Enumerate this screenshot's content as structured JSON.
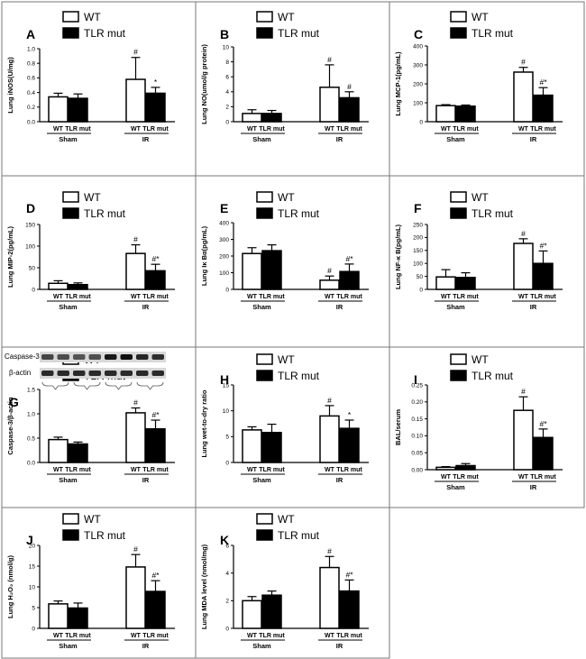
{
  "colors": {
    "wt": "#ffffff",
    "mut": "#000000",
    "border": "#777777"
  },
  "legend": {
    "wt": "WT",
    "mut": "TLR mut"
  },
  "groups": {
    "sham": "Sham",
    "ir": "IR"
  },
  "sub_labels": {
    "wt": "WT",
    "mut": "TLR mut"
  },
  "blot": {
    "caspase": "Caspase-3",
    "actin": "β-actin"
  },
  "chart_data": [
    {
      "letter": "A",
      "type": "bar",
      "ylabel": "Lung iNOS(U/mg)",
      "ylim": [
        0,
        1.0
      ],
      "yticks": [
        "0.0",
        "0.2",
        "0.4",
        "0.6",
        "0.8",
        "1.0"
      ],
      "series": [
        {
          "name": "WT",
          "values": [
            0.34,
            0.58
          ],
          "errors": [
            0.05,
            0.3
          ]
        },
        {
          "name": "TLR mut",
          "values": [
            0.32,
            0.39
          ],
          "errors": [
            0.06,
            0.08
          ]
        }
      ],
      "sig_wt_ir": "#",
      "sig_mut_ir": "*"
    },
    {
      "letter": "B",
      "type": "bar",
      "ylabel": "Lung NO(umol/g protein)",
      "ylim": [
        0,
        10
      ],
      "yticks": [
        "0",
        "2",
        "4",
        "6",
        "8",
        "10"
      ],
      "series": [
        {
          "name": "WT",
          "values": [
            1.1,
            4.6
          ],
          "errors": [
            0.5,
            3.0
          ]
        },
        {
          "name": "TLR mut",
          "values": [
            1.1,
            3.2
          ],
          "errors": [
            0.4,
            0.8
          ]
        }
      ],
      "sig_wt_ir": "#",
      "sig_mut_ir": "#"
    },
    {
      "letter": "C",
      "type": "bar",
      "ylabel": "Lung MCP-1(pg/mL)",
      "ylim": [
        0,
        400
      ],
      "yticks": [
        "0",
        "100",
        "200",
        "300",
        "400"
      ],
      "series": [
        {
          "name": "WT",
          "values": [
            85,
            262
          ],
          "errors": [
            5,
            25
          ]
        },
        {
          "name": "TLR mut",
          "values": [
            82,
            140
          ],
          "errors": [
            6,
            40
          ]
        }
      ],
      "sig_wt_ir": "#",
      "sig_mut_ir": "#*"
    },
    {
      "letter": "D",
      "type": "bar",
      "ylabel": "Lung MIP-2(pg/mL)",
      "ylim": [
        0,
        150
      ],
      "yticks": [
        "0",
        "50",
        "100",
        "150"
      ],
      "series": [
        {
          "name": "WT",
          "values": [
            14,
            83
          ],
          "errors": [
            6,
            20
          ]
        },
        {
          "name": "TLR mut",
          "values": [
            11,
            43
          ],
          "errors": [
            4,
            15
          ]
        }
      ],
      "sig_wt_ir": "#",
      "sig_mut_ir": "#*"
    },
    {
      "letter": "E",
      "type": "bar",
      "ylabel": "Lung Iκ Bα(pg/mL)",
      "ylim": [
        0,
        400
      ],
      "yticks": [
        "0",
        "100",
        "200",
        "300",
        "400"
      ],
      "series": [
        {
          "name": "WT",
          "values": [
            215,
            55
          ],
          "errors": [
            35,
            25
          ]
        },
        {
          "name": "TLR mut",
          "values": [
            232,
            107
          ],
          "errors": [
            35,
            45
          ]
        }
      ],
      "sig_wt_ir": "#",
      "sig_mut_ir": "#*"
    },
    {
      "letter": "F",
      "type": "bar",
      "ylabel": "Lung NF-κ B(pg/mL)",
      "ylim": [
        0,
        250
      ],
      "yticks": [
        "0",
        "50",
        "100",
        "150",
        "200",
        "250"
      ],
      "series": [
        {
          "name": "WT",
          "values": [
            48,
            177
          ],
          "errors": [
            28,
            18
          ]
        },
        {
          "name": "TLR mut",
          "values": [
            46,
            100
          ],
          "errors": [
            18,
            48
          ]
        }
      ],
      "sig_wt_ir": "#",
      "sig_mut_ir": "#*"
    },
    {
      "letter": "G",
      "type": "bar",
      "ylabel": "Caspase-3/β-actin",
      "ylim": [
        0,
        1.5
      ],
      "yticks": [
        "0.0",
        "0.5",
        "1.0",
        "1.5"
      ],
      "series": [
        {
          "name": "WT",
          "values": [
            0.47,
            1.02
          ],
          "errors": [
            0.05,
            0.1
          ]
        },
        {
          "name": "TLR mut",
          "values": [
            0.38,
            0.69
          ],
          "errors": [
            0.04,
            0.18
          ]
        }
      ],
      "sig_wt_ir": "#",
      "sig_mut_ir": "#*"
    },
    {
      "letter": "H",
      "type": "bar",
      "ylabel": "Lung wet-to-dry ratio",
      "ylim": [
        0,
        15
      ],
      "yticks": [
        "0",
        "5",
        "10",
        "15"
      ],
      "series": [
        {
          "name": "WT",
          "values": [
            6.3,
            9.0
          ],
          "errors": [
            0.6,
            2.0
          ]
        },
        {
          "name": "TLR mut",
          "values": [
            5.8,
            6.6
          ],
          "errors": [
            1.6,
            1.6
          ]
        }
      ],
      "sig_wt_ir": "#",
      "sig_mut_ir": "*"
    },
    {
      "letter": "I",
      "type": "bar",
      "ylabel": "BAL/serum",
      "ylim": [
        0,
        0.25
      ],
      "yticks": [
        "0.00",
        "0.05",
        "0.10",
        "0.15",
        "0.20",
        "0.25"
      ],
      "series": [
        {
          "name": "WT",
          "values": [
            0.007,
            0.175
          ],
          "errors": [
            0.002,
            0.04
          ]
        },
        {
          "name": "TLR mut",
          "values": [
            0.012,
            0.095
          ],
          "errors": [
            0.006,
            0.025
          ]
        }
      ],
      "sig_wt_ir": "#",
      "sig_mut_ir": "#*"
    },
    {
      "letter": "J",
      "type": "bar",
      "ylabel": "Lung H₂O₂ (nmol/g)",
      "ylim": [
        0,
        20
      ],
      "yticks": [
        "0",
        "5",
        "10",
        "15",
        "20"
      ],
      "series": [
        {
          "name": "WT",
          "values": [
            5.9,
            14.8
          ],
          "errors": [
            0.7,
            3.0
          ]
        },
        {
          "name": "TLR mut",
          "values": [
            4.9,
            8.9
          ],
          "errors": [
            1.2,
            2.6
          ]
        }
      ],
      "sig_wt_ir": "#",
      "sig_mut_ir": "#*"
    },
    {
      "letter": "K",
      "type": "bar",
      "ylabel": "Lung MDA level (nmol/mg)",
      "ylim": [
        0,
        6
      ],
      "yticks": [
        "0",
        "2",
        "4",
        "6"
      ],
      "series": [
        {
          "name": "WT",
          "values": [
            2.0,
            4.4
          ],
          "errors": [
            0.3,
            0.8
          ]
        },
        {
          "name": "TLR mut",
          "values": [
            2.4,
            2.7
          ],
          "errors": [
            0.3,
            0.8
          ]
        }
      ],
      "sig_wt_ir": "#",
      "sig_mut_ir": "#*"
    }
  ]
}
